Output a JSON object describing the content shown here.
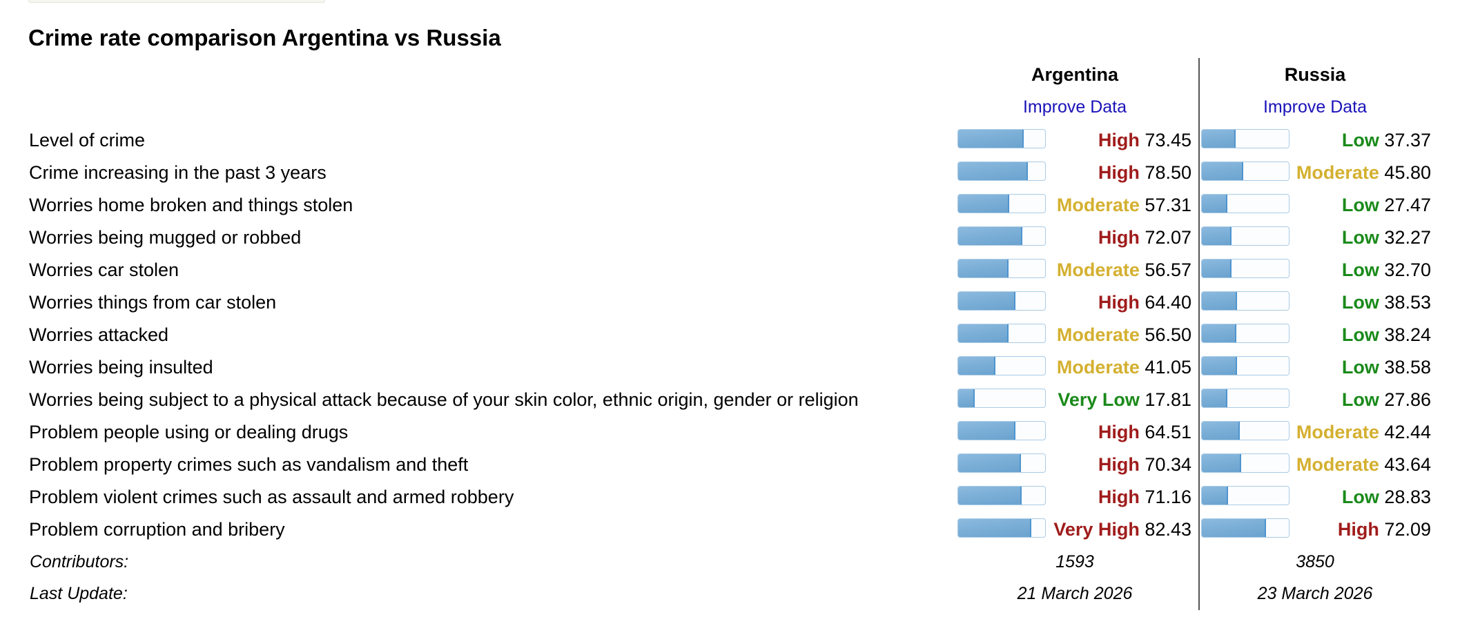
{
  "title": "Crime rate comparison Argentina vs Russia",
  "countries": [
    {
      "name": "Argentina",
      "improve": "Improve Data",
      "contributors": "1593",
      "last_update": "21 March 2026"
    },
    {
      "name": "Russia",
      "improve": "Improve Data",
      "contributors": "3850",
      "last_update": "23 March 2026"
    }
  ],
  "footer": {
    "contributors_label": "Contributors:",
    "last_update_label": "Last Update:"
  },
  "colors": {
    "High": "#a01c1c",
    "Very High": "#a01c1c",
    "Moderate": "#d4b030",
    "Low": "#1a8a1a",
    "Very Low": "#1a8a1a"
  },
  "rows": [
    {
      "label": "Level of crime",
      "a": {
        "rank": "High",
        "value": "73.45"
      },
      "r": {
        "rank": "Low",
        "value": "37.37"
      }
    },
    {
      "label": "Crime increasing in the past 3 years",
      "a": {
        "rank": "High",
        "value": "78.50"
      },
      "r": {
        "rank": "Moderate",
        "value": "45.80"
      }
    },
    {
      "label": "Worries home broken and things stolen",
      "a": {
        "rank": "Moderate",
        "value": "57.31"
      },
      "r": {
        "rank": "Low",
        "value": "27.47"
      }
    },
    {
      "label": "Worries being mugged or robbed",
      "a": {
        "rank": "High",
        "value": "72.07"
      },
      "r": {
        "rank": "Low",
        "value": "32.27"
      }
    },
    {
      "label": "Worries car stolen",
      "a": {
        "rank": "Moderate",
        "value": "56.57"
      },
      "r": {
        "rank": "Low",
        "value": "32.70"
      }
    },
    {
      "label": "Worries things from car stolen",
      "a": {
        "rank": "High",
        "value": "64.40"
      },
      "r": {
        "rank": "Low",
        "value": "38.53"
      }
    },
    {
      "label": "Worries attacked",
      "a": {
        "rank": "Moderate",
        "value": "56.50"
      },
      "r": {
        "rank": "Low",
        "value": "38.24"
      }
    },
    {
      "label": "Worries being insulted",
      "a": {
        "rank": "Moderate",
        "value": "41.05"
      },
      "r": {
        "rank": "Low",
        "value": "38.58"
      }
    },
    {
      "label": "Worries being subject to a physical attack because of your skin color, ethnic origin, gender or religion",
      "a": {
        "rank": "Very Low",
        "value": "17.81"
      },
      "r": {
        "rank": "Low",
        "value": "27.86"
      }
    },
    {
      "label": "Problem people using or dealing drugs",
      "a": {
        "rank": "High",
        "value": "64.51"
      },
      "r": {
        "rank": "Moderate",
        "value": "42.44"
      }
    },
    {
      "label": "Problem property crimes such as vandalism and theft",
      "a": {
        "rank": "High",
        "value": "70.34"
      },
      "r": {
        "rank": "Moderate",
        "value": "43.64"
      }
    },
    {
      "label": "Problem violent crimes such as assault and armed robbery",
      "a": {
        "rank": "High",
        "value": "71.16"
      },
      "r": {
        "rank": "Low",
        "value": "28.83"
      }
    },
    {
      "label": "Problem corruption and bribery",
      "a": {
        "rank": "Very High",
        "value": "82.43"
      },
      "r": {
        "rank": "High",
        "value": "72.09"
      }
    }
  ]
}
